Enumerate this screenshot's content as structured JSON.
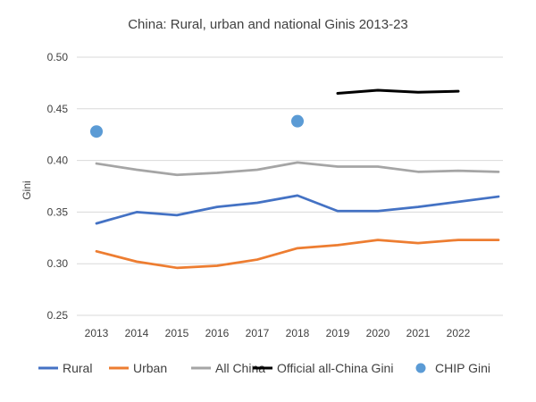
{
  "chart_data": {
    "type": "line",
    "title": "China: Rural, urban and national Ginis 2013-23",
    "ylabel": "Gini",
    "xlabel": "",
    "categories": [
      "2013",
      "2014",
      "2015",
      "2016",
      "2017",
      "2018",
      "2019",
      "2020",
      "2021",
      "2022",
      ""
    ],
    "ylim": [
      0.25,
      0.5
    ],
    "yticks": [
      "0.25",
      "0.30",
      "0.35",
      "0.40",
      "0.45",
      "0.50"
    ],
    "grid": true,
    "legend_position": "bottom",
    "series": [
      {
        "name": "Rural",
        "kind": "line",
        "color": "#4472C4",
        "values": [
          0.339,
          0.35,
          0.347,
          0.355,
          0.359,
          0.366,
          0.351,
          0.351,
          0.355,
          0.36,
          0.365
        ]
      },
      {
        "name": "Urban",
        "kind": "line",
        "color": "#ED7D31",
        "values": [
          0.312,
          0.302,
          0.296,
          0.298,
          0.304,
          0.315,
          0.318,
          0.323,
          0.32,
          0.323,
          0.323
        ]
      },
      {
        "name": "All China",
        "kind": "line",
        "color": "#A5A5A5",
        "values": [
          0.397,
          0.391,
          0.386,
          0.388,
          0.391,
          0.398,
          0.394,
          0.394,
          0.389,
          0.39,
          0.389
        ]
      },
      {
        "name": "Official all-China Gini",
        "kind": "line",
        "color": "#000000",
        "values": [
          null,
          null,
          null,
          null,
          null,
          null,
          0.465,
          0.468,
          0.466,
          0.467,
          null
        ]
      },
      {
        "name": "CHIP Gini",
        "kind": "marker",
        "color": "#5B9BD5",
        "values": [
          0.428,
          null,
          null,
          null,
          null,
          0.438,
          null,
          null,
          null,
          null,
          null
        ]
      }
    ]
  }
}
